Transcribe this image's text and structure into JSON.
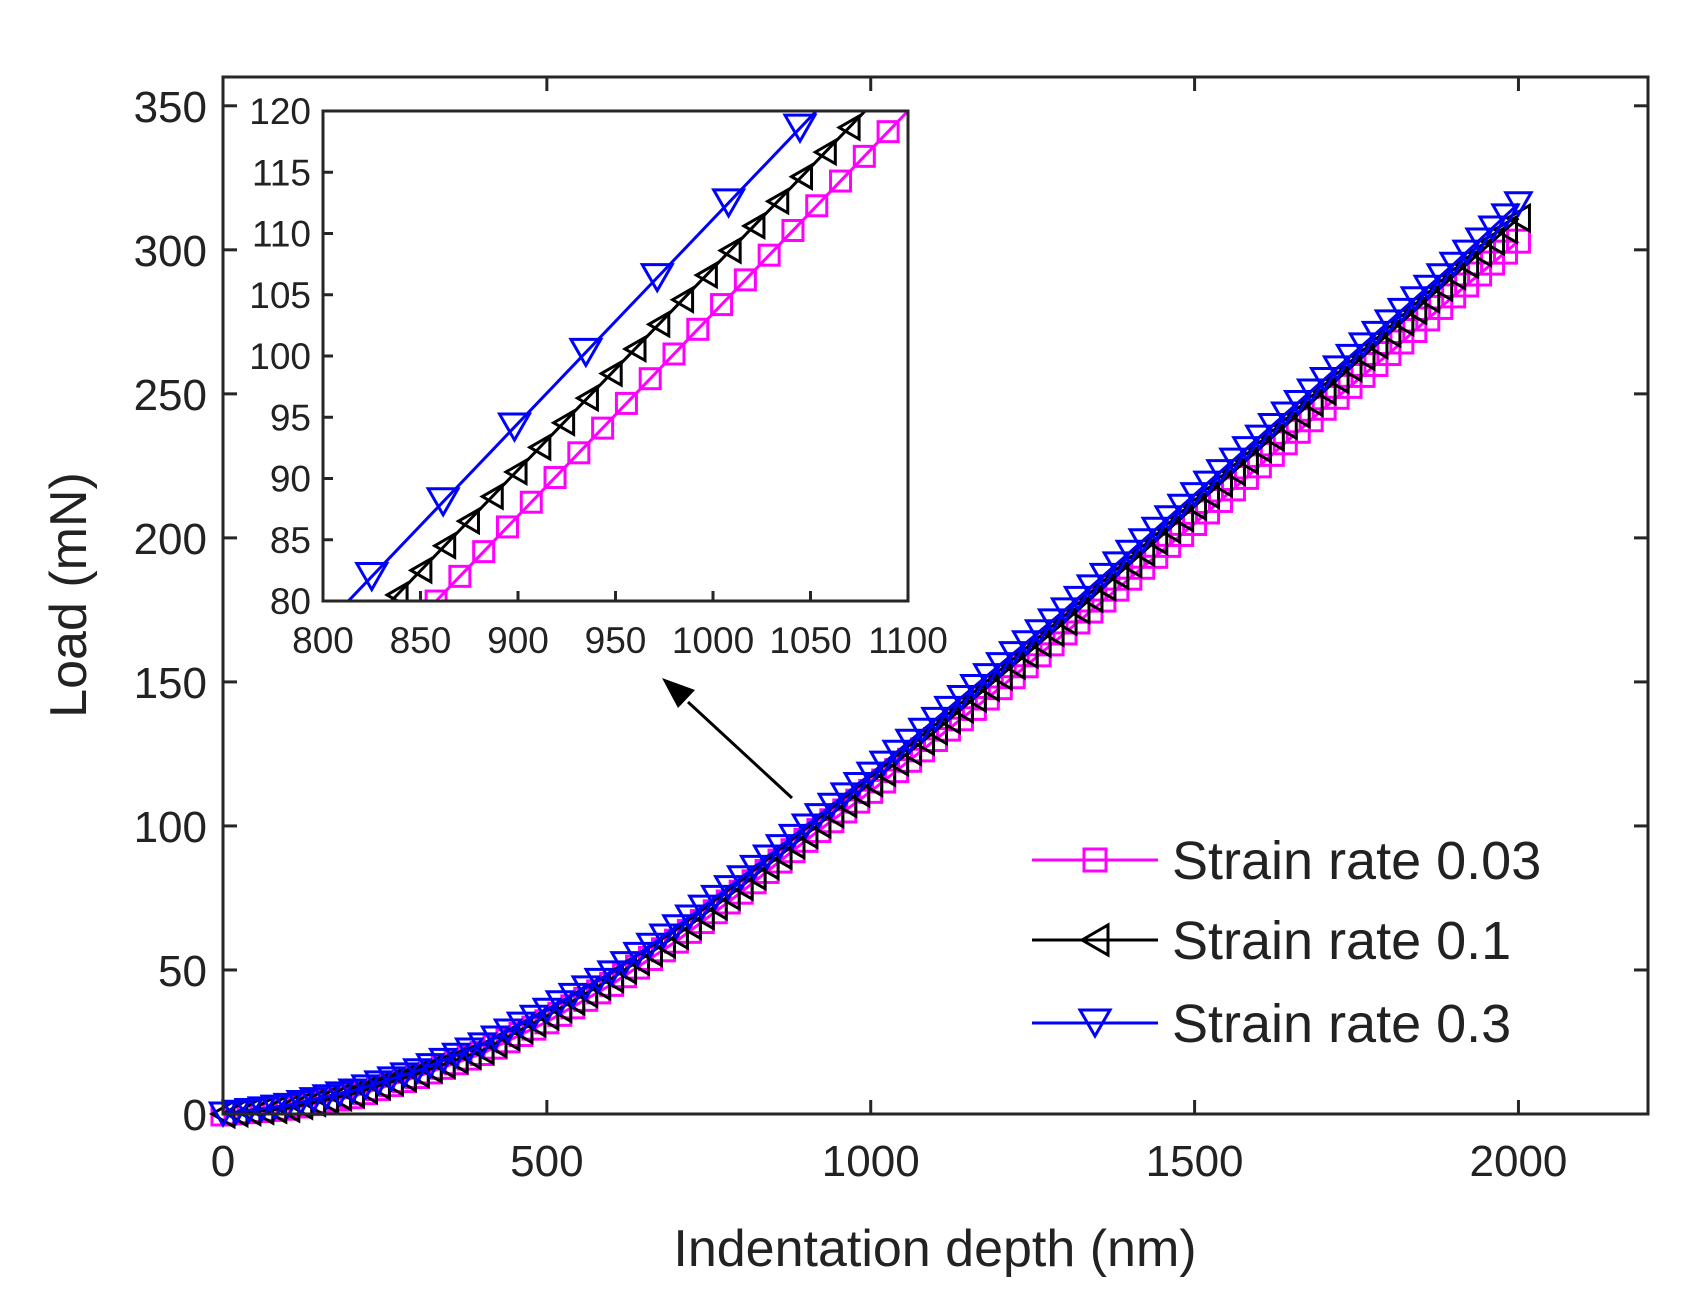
{
  "chart_data": [
    {
      "id": "main",
      "type": "line",
      "xlabel": "Indentation depth (nm)",
      "ylabel": "Load (mN)",
      "xlim": [
        0,
        2200
      ],
      "ylim": [
        0,
        360
      ],
      "xticks": [
        0,
        500,
        1000,
        1500,
        2000
      ],
      "yticks": [
        0,
        50,
        100,
        150,
        200,
        250,
        300,
        350
      ],
      "grid": false,
      "legend_position": "bottom-right",
      "series": [
        {
          "name": "Strain rate 0.03",
          "color": "#ff00ff",
          "marker": "square",
          "x": [
            0,
            100,
            200,
            300,
            400,
            500,
            600,
            700,
            800,
            900,
            1000,
            1100,
            1200,
            1300,
            1400,
            1500,
            1600,
            1700,
            1800,
            1900,
            2000
          ],
          "y": [
            0,
            2,
            6,
            13,
            21,
            32,
            45,
            60,
            77,
            95,
            112,
            130,
            148,
            167,
            186,
            205,
            225,
            245,
            264,
            284,
            303
          ]
        },
        {
          "name": "Strain rate 0.1",
          "color": "#000000",
          "marker": "triangle-left",
          "x": [
            0,
            100,
            200,
            300,
            400,
            500,
            600,
            700,
            800,
            900,
            1000,
            1100,
            1200,
            1300,
            1400,
            1500,
            1600,
            1700,
            1800,
            1900,
            2000
          ],
          "y": [
            0,
            2,
            7,
            14,
            22,
            34,
            47,
            62,
            79,
            97,
            115,
            133,
            152,
            171,
            191,
            211,
            231,
            251,
            271,
            291,
            311
          ]
        },
        {
          "name": "Strain rate 0.3",
          "color": "#0000ff",
          "marker": "triangle-down",
          "x": [
            0,
            100,
            200,
            300,
            400,
            500,
            600,
            700,
            800,
            900,
            1000,
            1100,
            1200,
            1300,
            1400,
            1500,
            1600,
            1700,
            1800,
            1900,
            2000
          ],
          "y": [
            0,
            3,
            8,
            15,
            24,
            36,
            49,
            65,
            82,
            100,
            118,
            137,
            156,
            175,
            195,
            215,
            235,
            255,
            275,
            295,
            316
          ]
        }
      ]
    },
    {
      "id": "inset",
      "type": "line",
      "xlabel": "",
      "ylabel": "",
      "xlim": [
        800,
        1100
      ],
      "ylim": [
        80,
        120
      ],
      "xticks": [
        800,
        850,
        900,
        950,
        1000,
        1050,
        1100
      ],
      "yticks": [
        80,
        85,
        90,
        95,
        100,
        105,
        110,
        115,
        120
      ],
      "grid": false,
      "series": [
        {
          "name": "Strain rate 0.03",
          "color": "#ff00ff",
          "marker": "square",
          "x": [
            855,
            1100
          ],
          "y": [
            79.5,
            120
          ],
          "marker_step_x": 12.2
        },
        {
          "name": "Strain rate 0.1",
          "color": "#000000",
          "marker": "triangle-left",
          "x": [
            835,
            1078
          ],
          "y": [
            80,
            120
          ],
          "marker_step_x": 12.2
        },
        {
          "name": "Strain rate 0.3",
          "color": "#0000ff",
          "marker": "triangle-down",
          "x": [
            813,
            1053
          ],
          "y": [
            80,
            120
          ],
          "marker_step_x": 36.6
        }
      ]
    }
  ]
}
